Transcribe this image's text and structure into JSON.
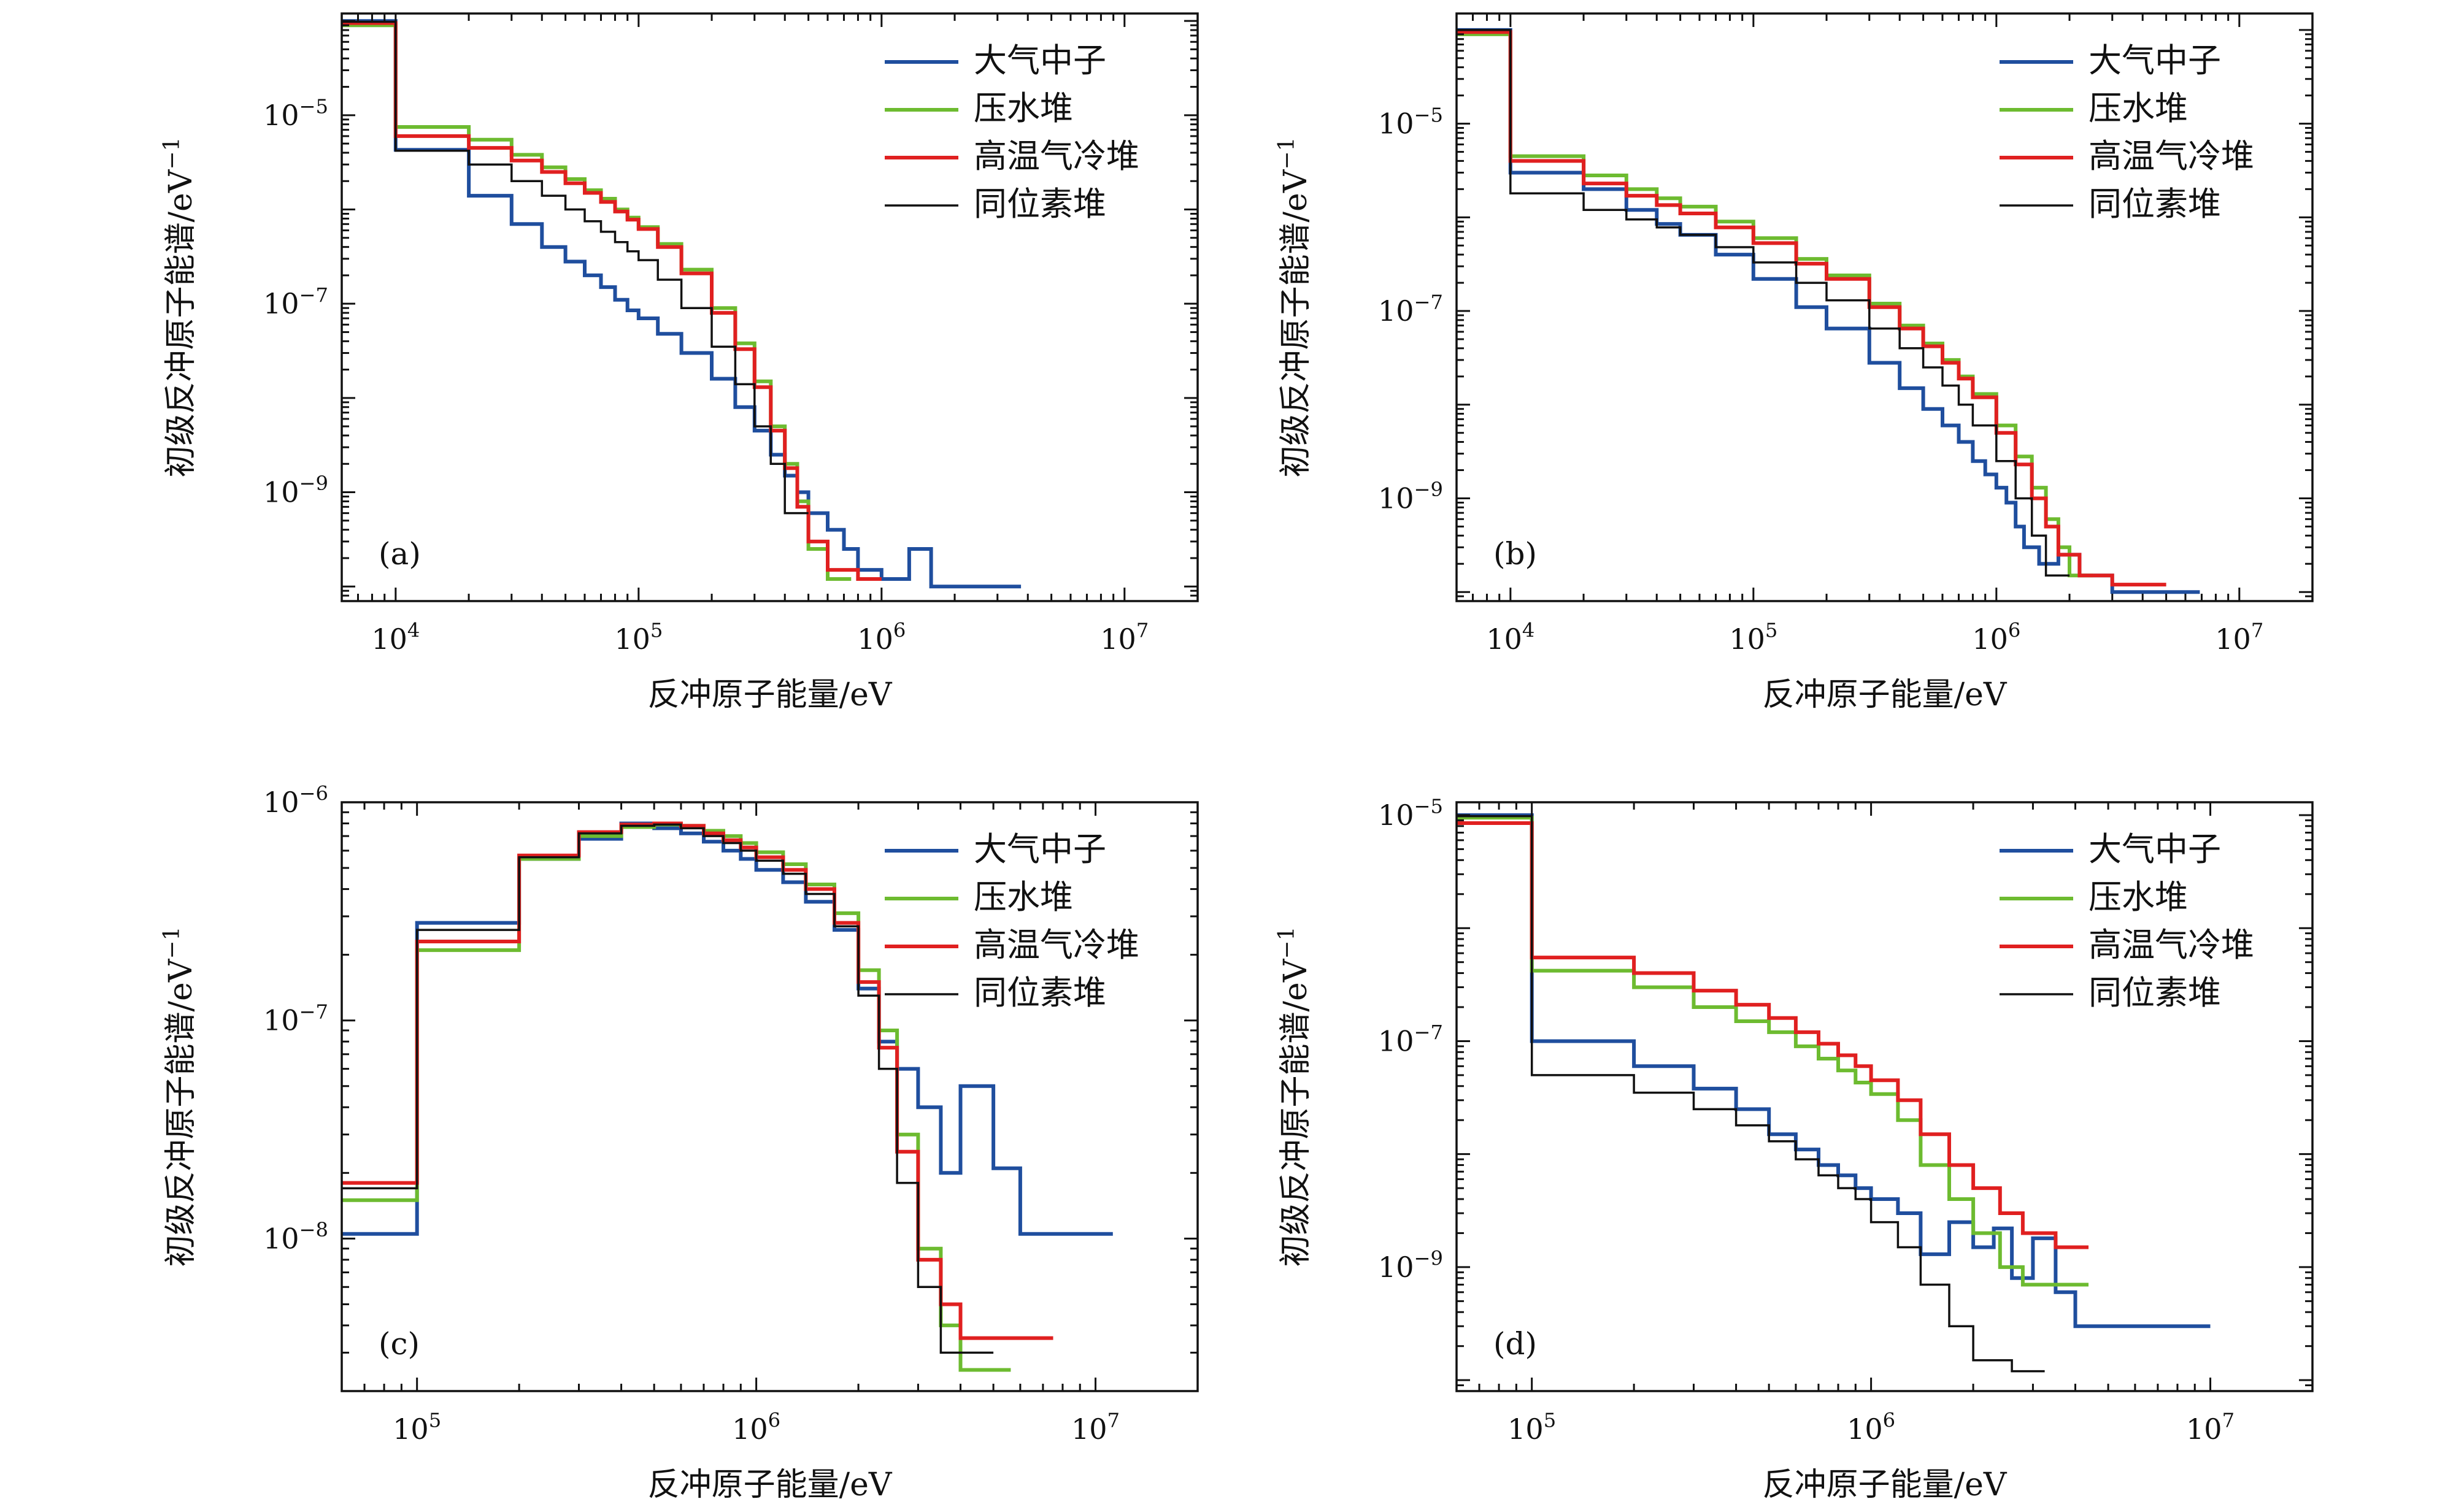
{
  "chart_data": [
    {
      "type": "line",
      "step": true,
      "panel": "(a)",
      "xscale": "log",
      "yscale": "log",
      "xlim": [
        6000,
        20000000
      ],
      "ylim": [
        7e-11,
        0.00012
      ],
      "xlabel": "反冲原子能量/eV",
      "ylabel": "初级反冲原子能谱/eV",
      "ylabel_unit_exp": "−1",
      "x_ticks": [
        {
          "v": 10000,
          "b": "10",
          "e": "4"
        },
        {
          "v": 100000,
          "b": "10",
          "e": "5"
        },
        {
          "v": 1000000,
          "b": "10",
          "e": "6"
        },
        {
          "v": 10000000,
          "b": "10",
          "e": "7"
        }
      ],
      "y_ticks": [
        {
          "v": 1e-05,
          "b": "10",
          "e": "−5"
        },
        {
          "v": 1e-07,
          "b": "10",
          "e": "−7"
        },
        {
          "v": 1e-09,
          "b": "10",
          "e": "−9"
        }
      ],
      "legend": {
        "position": "top-right"
      },
      "series": [
        {
          "name": "大气中子",
          "color": "#1f4e9e",
          "x": [
            6000,
            10000,
            20000,
            30000,
            40000,
            50000,
            60000,
            70000,
            80000,
            90000,
            100000,
            120000,
            150000,
            200000,
            250000,
            300000,
            350000,
            400000,
            450000,
            500000,
            600000,
            700000,
            800000,
            1000000,
            1300000,
            1600000,
            2000000,
            3000000
          ],
          "y": [
            0.0001,
            4.3e-06,
            1.4e-06,
            7e-07,
            4e-07,
            2.8e-07,
            2e-07,
            1.5e-07,
            1.1e-07,
            8.5e-08,
            7e-08,
            4.8e-08,
            3e-08,
            1.6e-08,
            8e-09,
            4.5e-09,
            2.5e-09,
            1.5e-09,
            1e-09,
            6e-10,
            4e-10,
            2.5e-10,
            1.5e-10,
            1.2e-10,
            2.5e-10,
            1e-10,
            1e-10,
            1e-10
          ]
        },
        {
          "name": "压水堆",
          "color": "#6dbb30",
          "x": [
            6000,
            10000,
            20000,
            30000,
            40000,
            50000,
            60000,
            70000,
            80000,
            90000,
            100000,
            120000,
            150000,
            200000,
            250000,
            300000,
            350000,
            400000,
            450000,
            500000,
            600000
          ],
          "y": [
            9e-05,
            7.5e-06,
            5.5e-06,
            3.8e-06,
            2.8e-06,
            2.1e-06,
            1.6e-06,
            1.3e-06,
            1e-06,
            8.2e-07,
            6.5e-07,
            4.3e-07,
            2.3e-07,
            9e-08,
            3.8e-08,
            1.5e-08,
            5e-09,
            2e-09,
            8e-10,
            2.5e-10,
            1.2e-10
          ]
        },
        {
          "name": "高温气冷堆",
          "color": "#e02020",
          "x": [
            6000,
            10000,
            20000,
            30000,
            40000,
            50000,
            60000,
            70000,
            80000,
            90000,
            100000,
            120000,
            150000,
            200000,
            250000,
            300000,
            350000,
            400000,
            450000,
            500000,
            600000,
            800000
          ],
          "y": [
            9.5e-05,
            6e-06,
            4.5e-06,
            3.3e-06,
            2.5e-06,
            1.9e-06,
            1.5e-06,
            1.2e-06,
            9.5e-07,
            7.8e-07,
            6.2e-07,
            4e-07,
            2.1e-07,
            8e-08,
            3.3e-08,
            1.3e-08,
            4.5e-09,
            1.8e-09,
            7e-10,
            3e-10,
            1.5e-10,
            1.2e-10
          ]
        },
        {
          "name": "同位素堆",
          "color": "#111111",
          "x": [
            6000,
            10000,
            20000,
            30000,
            40000,
            50000,
            60000,
            70000,
            80000,
            90000,
            100000,
            120000,
            150000,
            200000,
            250000,
            300000,
            350000,
            400000
          ],
          "y": [
            9.8e-05,
            4.2e-06,
            3e-06,
            2e-06,
            1.4e-06,
            1e-06,
            7.5e-07,
            5.8e-07,
            4.5e-07,
            3.6e-07,
            2.9e-07,
            1.8e-07,
            9e-08,
            3.5e-08,
            1.4e-08,
            5e-09,
            2e-09,
            6e-10
          ]
        }
      ]
    },
    {
      "type": "line",
      "step": true,
      "panel": "(b)",
      "xscale": "log",
      "yscale": "log",
      "xlim": [
        6000,
        20000000
      ],
      "ylim": [
        8e-11,
        0.00015
      ],
      "xlabel": "反冲原子能量/eV",
      "ylabel": "初级反冲原子能谱/eV",
      "ylabel_unit_exp": "−1",
      "x_ticks": [
        {
          "v": 10000,
          "b": "10",
          "e": "4"
        },
        {
          "v": 100000,
          "b": "10",
          "e": "5"
        },
        {
          "v": 1000000,
          "b": "10",
          "e": "6"
        },
        {
          "v": 10000000,
          "b": "10",
          "e": "7"
        }
      ],
      "y_ticks": [
        {
          "v": 1e-05,
          "b": "10",
          "e": "−5"
        },
        {
          "v": 1e-07,
          "b": "10",
          "e": "−7"
        },
        {
          "v": 1e-09,
          "b": "10",
          "e": "−9"
        }
      ],
      "legend": {
        "position": "top-right"
      },
      "series": [
        {
          "name": "大气中子",
          "color": "#1f4e9e",
          "x": [
            6000,
            10000,
            20000,
            30000,
            40000,
            50000,
            70000,
            100000,
            150000,
            200000,
            300000,
            400000,
            500000,
            600000,
            700000,
            800000,
            900000,
            1000000,
            1100000,
            1200000,
            1300000,
            1500000,
            1800000,
            2200000,
            3000000,
            5500000
          ],
          "y": [
            0.0001,
            3e-06,
            2e-06,
            1.2e-06,
            8.5e-07,
            6.5e-07,
            4e-07,
            2.2e-07,
            1.1e-07,
            6.5e-08,
            2.8e-08,
            1.5e-08,
            9e-09,
            6e-09,
            4e-09,
            2.5e-09,
            1.8e-09,
            1.3e-09,
            9e-10,
            5e-10,
            3e-10,
            2e-10,
            2.5e-10,
            1.5e-10,
            1e-10,
            1e-10
          ]
        },
        {
          "name": "压水堆",
          "color": "#6dbb30",
          "x": [
            6000,
            10000,
            20000,
            30000,
            40000,
            50000,
            70000,
            100000,
            150000,
            200000,
            300000,
            400000,
            500000,
            600000,
            700000,
            800000,
            1000000,
            1200000,
            1400000,
            1600000,
            1800000,
            2000000
          ],
          "y": [
            9e-05,
            4.5e-06,
            2.8e-06,
            2e-06,
            1.6e-06,
            1.3e-06,
            9e-07,
            6e-07,
            3.6e-07,
            2.4e-07,
            1.2e-07,
            7e-08,
            4.5e-08,
            3e-08,
            2e-08,
            1.3e-08,
            6e-09,
            2.8e-09,
            1.3e-09,
            6e-10,
            3e-10,
            1.5e-10
          ]
        },
        {
          "name": "高温气冷堆",
          "color": "#e02020",
          "x": [
            6000,
            10000,
            20000,
            30000,
            40000,
            50000,
            70000,
            100000,
            150000,
            200000,
            300000,
            400000,
            500000,
            600000,
            700000,
            800000,
            1000000,
            1200000,
            1400000,
            1600000,
            1800000,
            2200000,
            3000000,
            4000000
          ],
          "y": [
            9.5e-05,
            4e-06,
            2.3e-06,
            1.7e-06,
            1.35e-06,
            1.1e-06,
            7.8e-07,
            5.3e-07,
            3.2e-07,
            2.2e-07,
            1.1e-07,
            6.5e-08,
            4.2e-08,
            2.8e-08,
            1.9e-08,
            1.2e-08,
            5e-09,
            2.3e-09,
            1e-09,
            5e-10,
            2.5e-10,
            1.5e-10,
            1.2e-10,
            1.2e-10
          ]
        },
        {
          "name": "同位素堆",
          "color": "#111111",
          "x": [
            6000,
            10000,
            20000,
            30000,
            40000,
            50000,
            70000,
            100000,
            150000,
            200000,
            300000,
            400000,
            500000,
            600000,
            700000,
            800000,
            1000000,
            1200000,
            1400000,
            1600000
          ],
          "y": [
            0.0001,
            1.8e-06,
            1.2e-06,
            9.5e-07,
            7.8e-07,
            6.5e-07,
            4.8e-07,
            3.3e-07,
            2e-07,
            1.3e-07,
            6.5e-08,
            4e-08,
            2.5e-08,
            1.6e-08,
            1e-08,
            6e-09,
            2.5e-09,
            1e-09,
            4e-10,
            1.5e-10
          ]
        }
      ]
    },
    {
      "type": "line",
      "step": true,
      "panel": "(c)",
      "xscale": "log",
      "yscale": "log",
      "xlim": [
        60000,
        20000000
      ],
      "ylim": [
        2e-09,
        1e-06
      ],
      "xlabel": "反冲原子能量/eV",
      "ylabel": "初级反冲原子能谱/eV",
      "ylabel_unit_exp": "−1",
      "x_ticks": [
        {
          "v": 100000,
          "b": "10",
          "e": "5"
        },
        {
          "v": 1000000,
          "b": "10",
          "e": "6"
        },
        {
          "v": 10000000,
          "b": "10",
          "e": "7"
        }
      ],
      "y_ticks": [
        {
          "v": 1e-06,
          "b": "10",
          "e": "−6"
        },
        {
          "v": 1e-07,
          "b": "10",
          "e": "−7"
        },
        {
          "v": 1e-08,
          "b": "10",
          "e": "−8"
        }
      ],
      "legend": {
        "position": "top-right"
      },
      "series": [
        {
          "name": "大气中子",
          "color": "#1f4e9e",
          "x": [
            60000,
            100000,
            200000,
            300000,
            400000,
            500000,
            600000,
            700000,
            800000,
            900000,
            1000000,
            1200000,
            1400000,
            1700000,
            2000000,
            2300000,
            2600000,
            3000000,
            3500000,
            4000000,
            5000000,
            6000000,
            9000000
          ],
          "y": [
            1.05e-08,
            2.8e-07,
            5.5e-07,
            6.8e-07,
            8e-07,
            7.6e-07,
            7.2e-07,
            6.6e-07,
            6e-07,
            5.5e-07,
            4.9e-07,
            4.3e-07,
            3.5e-07,
            2.6e-07,
            1.4e-07,
            8e-08,
            6e-08,
            4e-08,
            2e-08,
            5e-08,
            2.1e-08,
            1.05e-08,
            1.05e-08
          ]
        },
        {
          "name": "压水堆",
          "color": "#6dbb30",
          "x": [
            60000,
            100000,
            200000,
            300000,
            400000,
            500000,
            600000,
            700000,
            800000,
            900000,
            1000000,
            1200000,
            1400000,
            1700000,
            2000000,
            2300000,
            2600000,
            3000000,
            3500000,
            4000000,
            4500000
          ],
          "y": [
            1.5e-08,
            2.1e-07,
            5.5e-07,
            7e-07,
            7.7e-07,
            7.9e-07,
            7.8e-07,
            7.4e-07,
            7e-07,
            6.5e-07,
            5.9e-07,
            5.2e-07,
            4.2e-07,
            3.1e-07,
            1.7e-07,
            9e-08,
            3e-08,
            9e-09,
            4e-09,
            2.5e-09,
            2.5e-09
          ]
        },
        {
          "name": "高温气冷堆",
          "color": "#e02020",
          "x": [
            60000,
            100000,
            200000,
            300000,
            400000,
            500000,
            600000,
            700000,
            800000,
            900000,
            1000000,
            1200000,
            1400000,
            1700000,
            2000000,
            2300000,
            2600000,
            3000000,
            3500000,
            4000000,
            5000000,
            6000000
          ],
          "y": [
            1.8e-08,
            2.3e-07,
            5.7e-07,
            7.3e-07,
            7.9e-07,
            8e-07,
            7.8e-07,
            7.2e-07,
            6.7e-07,
            6.2e-07,
            5.6e-07,
            4.9e-07,
            4e-07,
            2.8e-07,
            1.5e-07,
            7.5e-08,
            2.5e-08,
            8e-09,
            5e-09,
            3.5e-09,
            3.5e-09,
            3.5e-09
          ]
        },
        {
          "name": "同位素堆",
          "color": "#111111",
          "x": [
            60000,
            100000,
            200000,
            300000,
            400000,
            500000,
            600000,
            700000,
            800000,
            900000,
            1000000,
            1200000,
            1400000,
            1700000,
            2000000,
            2300000,
            2600000,
            3000000,
            3500000,
            4000000
          ],
          "y": [
            1.7e-08,
            2.6e-07,
            5.6e-07,
            7.2e-07,
            7.8e-07,
            7.9e-07,
            7.6e-07,
            7e-07,
            6.5e-07,
            6e-07,
            5.4e-07,
            4.7e-07,
            3.8e-07,
            2.7e-07,
            1.3e-07,
            6e-08,
            1.8e-08,
            6e-09,
            3e-09,
            3e-09
          ]
        }
      ]
    },
    {
      "type": "line",
      "step": true,
      "panel": "(d)",
      "xscale": "log",
      "yscale": "log",
      "xlim": [
        60000,
        20000000
      ],
      "ylim": [
        8e-11,
        1.3e-05
      ],
      "xlabel": "反冲原子能量/eV",
      "ylabel": "初级反冲原子能谱/eV",
      "ylabel_unit_exp": "−1",
      "x_ticks": [
        {
          "v": 100000,
          "b": "10",
          "e": "5"
        },
        {
          "v": 1000000,
          "b": "10",
          "e": "6"
        },
        {
          "v": 10000000,
          "b": "10",
          "e": "7"
        }
      ],
      "y_ticks": [
        {
          "v": 1e-05,
          "b": "10",
          "e": "−5"
        },
        {
          "v": 1e-07,
          "b": "10",
          "e": "−7"
        },
        {
          "v": 1e-09,
          "b": "10",
          "e": "−9"
        }
      ],
      "legend": {
        "position": "top-right"
      },
      "series": [
        {
          "name": "大气中子",
          "color": "#1f4e9e",
          "x": [
            60000,
            100000,
            200000,
            300000,
            400000,
            500000,
            600000,
            700000,
            800000,
            900000,
            1000000,
            1200000,
            1400000,
            1700000,
            2000000,
            2300000,
            2600000,
            3000000,
            3500000,
            4000000,
            8000000
          ],
          "y": [
            1e-05,
            1e-07,
            6e-08,
            3.8e-08,
            2.5e-08,
            1.5e-08,
            1.1e-08,
            8e-09,
            6.5e-09,
            5e-09,
            4e-09,
            3e-09,
            1.3e-09,
            2.5e-09,
            1.5e-09,
            2.2e-09,
            8e-10,
            1.8e-09,
            6e-10,
            3e-10,
            3e-10
          ]
        },
        {
          "name": "压水堆",
          "color": "#6dbb30",
          "x": [
            60000,
            100000,
            200000,
            300000,
            400000,
            500000,
            600000,
            700000,
            800000,
            900000,
            1000000,
            1200000,
            1400000,
            1700000,
            2000000,
            2400000,
            2800000,
            3500000
          ],
          "y": [
            9.5e-06,
            4.2e-07,
            3e-07,
            2e-07,
            1.5e-07,
            1.2e-07,
            9e-08,
            7e-08,
            5.5e-08,
            4.3e-08,
            3.4e-08,
            2e-08,
            8e-09,
            4e-09,
            2e-09,
            1e-09,
            7e-10,
            7e-10
          ]
        },
        {
          "name": "高温气冷堆",
          "color": "#e02020",
          "x": [
            60000,
            100000,
            200000,
            300000,
            400000,
            500000,
            600000,
            700000,
            800000,
            900000,
            1000000,
            1200000,
            1400000,
            1700000,
            2000000,
            2400000,
            2800000,
            3500000
          ],
          "y": [
            8.5e-06,
            5.5e-07,
            4e-07,
            2.8e-07,
            2.1e-07,
            1.6e-07,
            1.2e-07,
            9.5e-08,
            7.5e-08,
            6e-08,
            4.5e-08,
            3e-08,
            1.5e-08,
            8e-09,
            5e-09,
            3e-09,
            2e-09,
            1.5e-09
          ]
        },
        {
          "name": "同位素堆",
          "color": "#111111",
          "x": [
            60000,
            100000,
            200000,
            300000,
            400000,
            500000,
            600000,
            700000,
            800000,
            900000,
            1000000,
            1200000,
            1400000,
            1700000,
            2000000,
            2600000
          ],
          "y": [
            9.8e-06,
            5e-08,
            3.5e-08,
            2.5e-08,
            1.8e-08,
            1.3e-08,
            9e-09,
            6.5e-09,
            5e-09,
            4e-09,
            2.5e-09,
            1.5e-09,
            7e-10,
            3e-10,
            1.5e-10,
            1.2e-10
          ]
        }
      ]
    }
  ]
}
